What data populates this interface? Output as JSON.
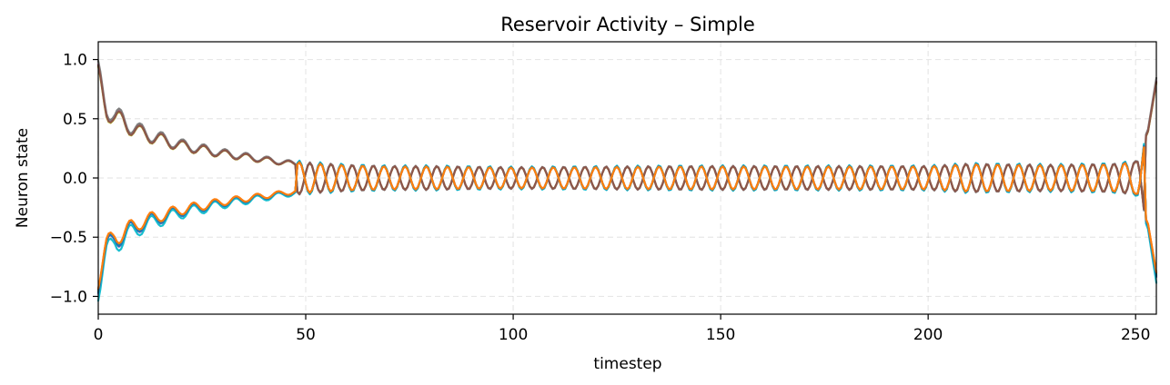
{
  "chart_data": {
    "type": "line",
    "title": "Reservoir Activity – Simple",
    "xlabel": "timestep",
    "ylabel": "Neuron state",
    "xlim": [
      0,
      255
    ],
    "ylim": [
      -1.15,
      1.15
    ],
    "xticks": [
      0,
      50,
      100,
      150,
      200,
      250
    ],
    "xtick_labels": [
      "0",
      "50",
      "100",
      "150",
      "200",
      "250"
    ],
    "yticks": [
      1.0,
      0.5,
      0.0,
      -0.5,
      -1.0
    ],
    "ytick_labels": [
      "1.0",
      "0.5",
      "0.0",
      "−0.5",
      "−1.0"
    ],
    "grid": true,
    "legend": "none",
    "description_of_series": "Multiple neuron traces start near ±1.0, decay with oscillation to about ±0.1 by t≈50, oscillate around 0 with amplitude ~0.1–0.15 until t≈250, then diverge back to ±0.8 at t=255.",
    "series": [
      {
        "color": "#e377c2",
        "sign": 1,
        "scale": 1.0
      },
      {
        "color": "#bcbd22",
        "sign": 1,
        "scale": 0.98
      },
      {
        "color": "#7f7f7f",
        "sign": 1,
        "scale": 1.03
      },
      {
        "color": "#8c564b",
        "sign": 1,
        "scale": 0.99
      },
      {
        "color": "#9467bd",
        "sign": -1,
        "scale": 1.02
      },
      {
        "color": "#17becf",
        "sign": -1,
        "scale": 1.08
      },
      {
        "color": "#d62728",
        "sign": -1,
        "scale": 0.98
      },
      {
        "color": "#2ca02c",
        "sign": -1,
        "scale": 1.0
      },
      {
        "color": "#1f77b4",
        "sign": -1,
        "scale": 1.01
      },
      {
        "color": "#ff7f0e",
        "sign": -1,
        "scale": 0.97
      }
    ],
    "envelope": {
      "t": [
        0,
        2,
        4,
        6,
        8,
        10,
        15,
        20,
        25,
        30,
        35,
        40,
        45,
        50,
        55,
        60,
        70,
        80,
        100,
        140,
        160,
        200,
        210,
        230,
        245,
        250,
        253,
        255
      ],
      "amp": [
        0.96,
        0.7,
        0.58,
        0.56,
        0.5,
        0.45,
        0.38,
        0.32,
        0.28,
        0.24,
        0.21,
        0.18,
        0.15,
        0.13,
        0.12,
        0.11,
        0.1,
        0.1,
        0.09,
        0.1,
        0.1,
        0.1,
        0.12,
        0.11,
        0.12,
        0.14,
        0.4,
        0.82
      ]
    },
    "period": 5.1
  }
}
